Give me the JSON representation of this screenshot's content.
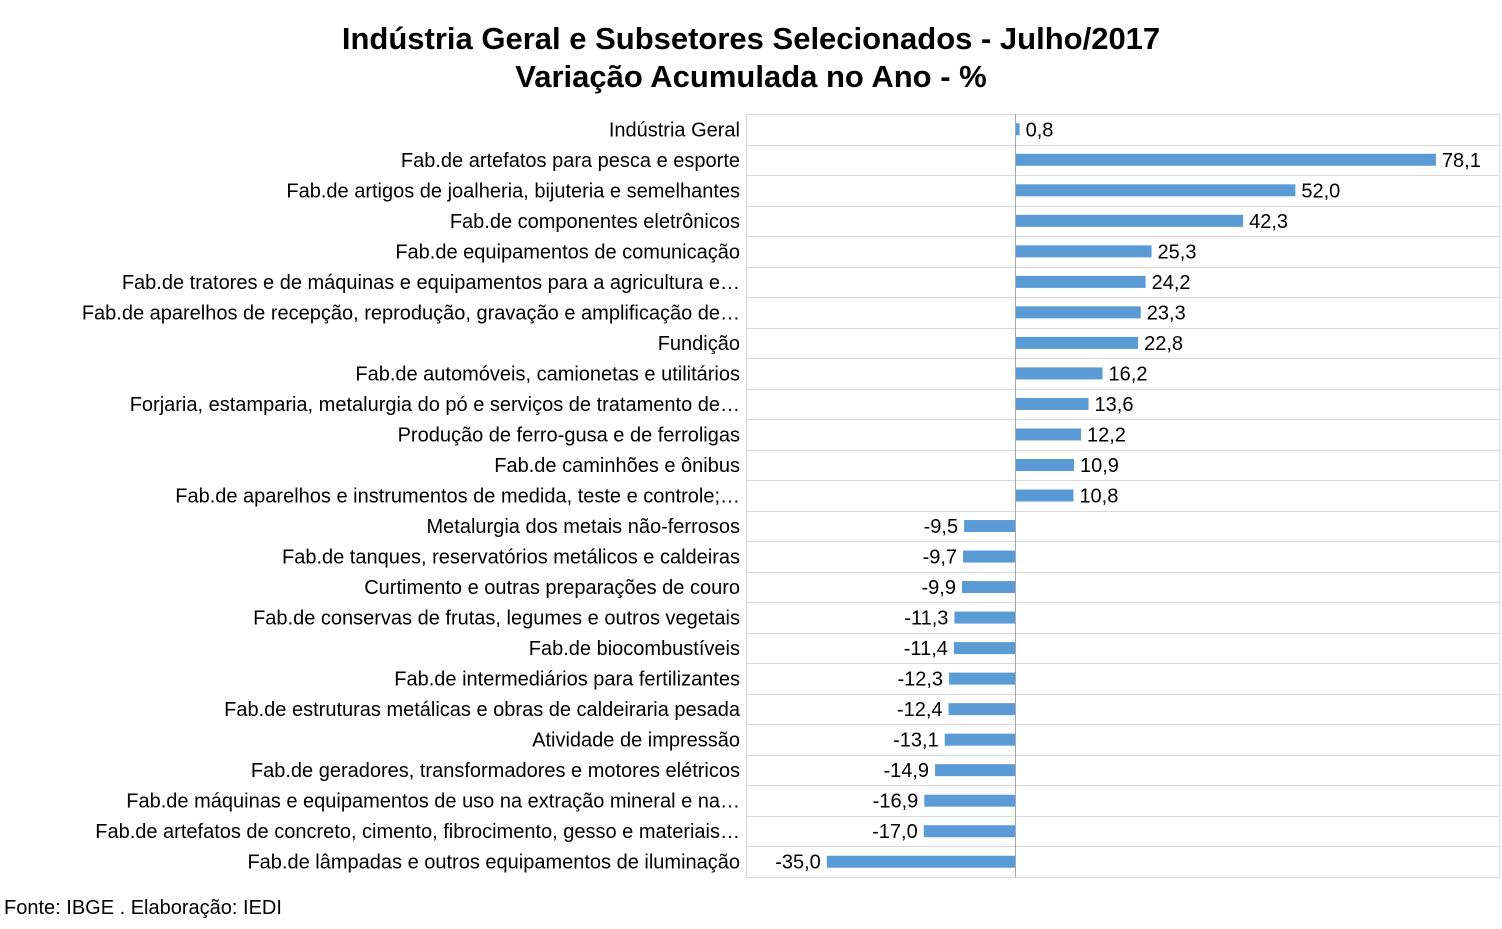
{
  "chart_data": {
    "type": "bar",
    "orientation": "horizontal",
    "title": "Indústria Geral e Subsetores Selecionados - Julho/2017",
    "subtitle": "Variação Acumulada no Ano - %",
    "categories": [
      "Indústria Geral",
      "Fab.de artefatos para pesca e esporte",
      "Fab.de artigos de joalheria, bijuteria e semelhantes",
      "Fab.de componentes eletrônicos",
      "Fab.de equipamentos de comunicação",
      "Fab.de tratores e de máquinas e equipamentos para a agricultura e…",
      "Fab.de aparelhos de recepção, reprodução, gravação e amplificação de…",
      "Fundição",
      "Fab.de automóveis, camionetas e utilitários",
      "Forjaria, estamparia, metalurgia do pó e serviços de tratamento de…",
      "Produção de ferro-gusa e de ferroligas",
      "Fab.de caminhões e ônibus",
      "Fab.de aparelhos e instrumentos de medida, teste e controle;…",
      "Metalurgia dos metais não-ferrosos",
      "Fab.de tanques, reservatórios metálicos e caldeiras",
      "Curtimento e outras preparações de couro",
      "Fab.de conservas de frutas, legumes e outros vegetais",
      "Fab.de biocombustíveis",
      "Fab.de intermediários para fertilizantes",
      "Fab.de estruturas metálicas e obras de caldeiraria pesada",
      "Atividade de impressão",
      "Fab.de geradores, transformadores e motores elétricos",
      "Fab.de máquinas e equipamentos de uso na extração mineral e na…",
      "Fab.de artefatos de concreto, cimento, fibrocimento, gesso e materiais…",
      "Fab.de lâmpadas e outros equipamentos de iluminação"
    ],
    "values": [
      0.8,
      78.1,
      52.0,
      42.3,
      25.3,
      24.2,
      23.3,
      22.8,
      16.2,
      13.6,
      12.2,
      10.9,
      10.8,
      -9.5,
      -9.7,
      -9.9,
      -11.3,
      -11.4,
      -12.3,
      -12.4,
      -13.1,
      -14.9,
      -16.9,
      -17.0,
      -35.0
    ],
    "data_labels": [
      "0,8",
      "78,1",
      "52,0",
      "42,3",
      "25,3",
      "24,2",
      "23,3",
      "22,8",
      "16,2",
      "13,6",
      "12,2",
      "10,9",
      "10,8",
      "-9,5",
      "-9,7",
      "-9,9",
      "-11,3",
      "-11,4",
      "-12,3",
      "-12,4",
      "-13,1",
      "-14,9",
      "-16,9",
      "-17,0",
      "-35,0"
    ],
    "xlim": [
      -50,
      90
    ],
    "grid": "horizontal",
    "legend": "none",
    "bar_color": "#5B9BD5"
  },
  "source_note": "Fonte: IBGE . Elaboração: IEDI",
  "colors": {
    "bar": "#5B9BD5",
    "grid": "#D9D9D9",
    "axis": "#A6A6A6",
    "text": "#000000"
  }
}
